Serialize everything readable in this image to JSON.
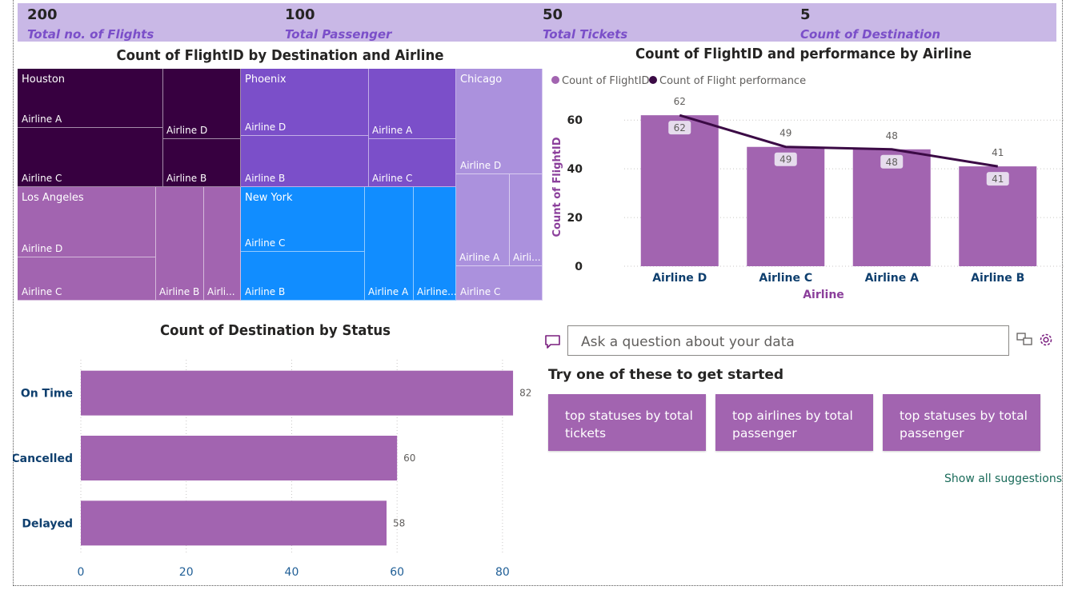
{
  "kpis": [
    {
      "value": "200",
      "label": "Total no. of Flights"
    },
    {
      "value": "100",
      "label": "Total Passenger"
    },
    {
      "value": "50",
      "label": "Total Tickets"
    },
    {
      "value": "5",
      "label": "Count of Destination"
    }
  ],
  "colors": {
    "kpi_bg": "#c9b8e6",
    "kpi_label": "#7b4fc9",
    "bar": "#a264b0",
    "line": "#3b0a45",
    "houston": "#370040",
    "phoenix": "#7b4fc9",
    "chicago": "#ab91dd",
    "los_angeles": "#a264b0",
    "new_york": "#118dff",
    "axis_text": "#0e3f6e"
  },
  "chart_data": [
    {
      "type": "treemap",
      "title": "Count of FlightID by Destination and Airline",
      "groups": [
        {
          "name": "Houston",
          "children": [
            "Airline A",
            "Airline C",
            "Airline D",
            "Airline B"
          ]
        },
        {
          "name": "Phoenix",
          "children": [
            "Airline D",
            "Airline B",
            "Airline A",
            "Airline C"
          ]
        },
        {
          "name": "Chicago",
          "children": [
            "Airline D",
            "Airline A",
            "Airli...",
            "Airline C"
          ]
        },
        {
          "name": "Los Angeles",
          "children": [
            "Airline D",
            "Airline C",
            "Airline B",
            "Airli..."
          ]
        },
        {
          "name": "New York",
          "children": [
            "Airline C",
            "Airline B",
            "Airline A",
            "Airline..."
          ]
        }
      ]
    },
    {
      "type": "bar",
      "title": "Count of FlightID and performance by Airline",
      "legend": [
        "Count of FlightID",
        "Count of Flight performance"
      ],
      "legend_position": "top-left",
      "categories": [
        "Airline D",
        "Airline C",
        "Airline A",
        "Airline B"
      ],
      "series": [
        {
          "name": "Count of FlightID",
          "values": [
            62,
            49,
            48,
            41
          ]
        },
        {
          "name": "Count of Flight performance",
          "values": [
            62,
            49,
            48,
            41
          ]
        }
      ],
      "xlabel": "Airline",
      "ylabel": "Count of FlightID",
      "ylim": [
        0,
        65
      ],
      "yticks": [
        "0",
        "20",
        "40",
        "60"
      ],
      "grid": true
    },
    {
      "type": "bar",
      "orientation": "horizontal",
      "title": "Count of Destination by Status",
      "categories": [
        "On Time",
        "Cancelled",
        "Delayed"
      ],
      "values": [
        82,
        60,
        58
      ],
      "xlim": [
        0,
        87
      ],
      "xticks": [
        "0",
        "20",
        "40",
        "60",
        "80"
      ],
      "grid": true
    }
  ],
  "qa": {
    "placeholder": "Ask a question about your data",
    "heading": "Try one of these to get started",
    "suggestions": [
      "top statuses by total tickets",
      "top airlines by total passenger",
      "top statuses by total passenger"
    ],
    "show_all": "Show all suggestions"
  }
}
